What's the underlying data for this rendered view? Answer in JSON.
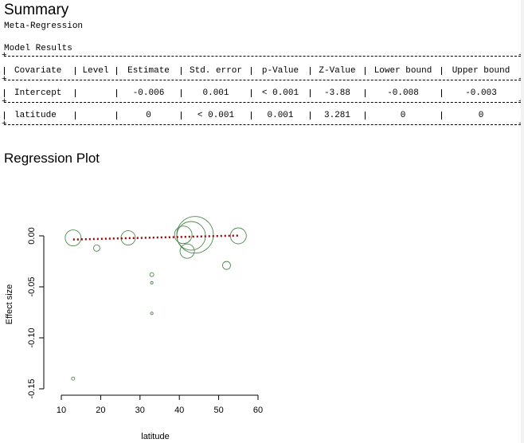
{
  "summary": {
    "title": "Summary",
    "subtitle": "Meta-Regression",
    "model_results_label": "Model Results"
  },
  "table": {
    "headers": [
      "Covariate",
      "Level",
      "Estimate",
      "Std. error",
      "p-Value",
      "Z-Value",
      "Lower bound",
      "Upper bound"
    ],
    "rows": [
      [
        "Intercept",
        "",
        "-0.006",
        "0.001",
        "< 0.001",
        "-3.88",
        "-0.008",
        "-0.003"
      ],
      [
        "latitude",
        "",
        "0",
        "< 0.001",
        "0.001",
        "3.281",
        "0",
        "0"
      ]
    ]
  },
  "plot": {
    "title": "Regression Plot"
  },
  "chart_data": {
    "type": "scatter",
    "title": "",
    "xlabel": "latitude",
    "ylabel": "Effect size",
    "xlim": [
      10,
      60
    ],
    "ylim": [
      -0.15,
      0.0
    ],
    "xticks": [
      10,
      20,
      30,
      40,
      50,
      60
    ],
    "yticks": [
      0.0,
      -0.05,
      -0.1,
      -0.15
    ],
    "xtick_labels": [
      "10",
      "20",
      "30",
      "40",
      "50",
      "60"
    ],
    "ytick_labels": [
      "0.00",
      "-0.05",
      "-0.10",
      "-0.15"
    ],
    "point_color": "#4d8a4d",
    "line_color": "#990000",
    "grid": false,
    "points": [
      {
        "x": 13,
        "y": -0.002,
        "weight": 10
      },
      {
        "x": 19,
        "y": -0.012,
        "weight": 4
      },
      {
        "x": 27,
        "y": -0.002,
        "weight": 9
      },
      {
        "x": 33,
        "y": -0.038,
        "weight": 2.5
      },
      {
        "x": 33,
        "y": -0.046,
        "weight": 1.6
      },
      {
        "x": 33,
        "y": -0.076,
        "weight": 1.6
      },
      {
        "x": 13,
        "y": -0.14,
        "weight": 2
      },
      {
        "x": 42,
        "y": -0.015,
        "weight": 9
      },
      {
        "x": 43,
        "y": 0.0,
        "weight": 18
      },
      {
        "x": 44,
        "y": 0.001,
        "weight": 23
      },
      {
        "x": 41,
        "y": 0.001,
        "weight": 11
      },
      {
        "x": 52,
        "y": -0.029,
        "weight": 5
      },
      {
        "x": 55,
        "y": 0.0,
        "weight": 10
      }
    ],
    "regression_line": {
      "x": [
        13,
        55
      ],
      "y": [
        -0.0036,
        0.00028
      ]
    }
  }
}
